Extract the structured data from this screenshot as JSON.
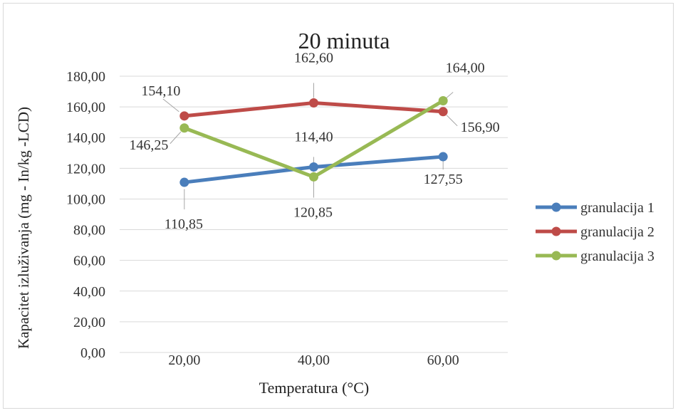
{
  "chart_data": {
    "type": "line",
    "title": "20 minuta",
    "xlabel": "Temperatura (°C)",
    "ylabel": "Kapacitet izluživanja (mg - In/kg -LCD)",
    "categories": [
      "20,00",
      "40,00",
      "60,00"
    ],
    "ylim": [
      0,
      180
    ],
    "ytick_labels": [
      "0,00",
      "20,00",
      "40,00",
      "60,00",
      "80,00",
      "100,00",
      "120,00",
      "140,00",
      "160,00",
      "180,00"
    ],
    "grid": true,
    "legend": "right",
    "series": [
      {
        "name": "granulacija 1",
        "color": "#4a7ebb",
        "values": [
          110.85,
          120.85,
          127.55
        ],
        "labels": [
          "110,85",
          "120,85",
          "127,55"
        ]
      },
      {
        "name": "granulacija 2",
        "color": "#be4b48",
        "values": [
          154.1,
          162.6,
          156.9
        ],
        "labels": [
          "154,10",
          "162,60",
          "156,90"
        ]
      },
      {
        "name": "granulacija 3",
        "color": "#98b954",
        "values": [
          146.25,
          114.4,
          164.0
        ],
        "labels": [
          "146,25",
          "114,40",
          "164,00"
        ]
      }
    ]
  }
}
